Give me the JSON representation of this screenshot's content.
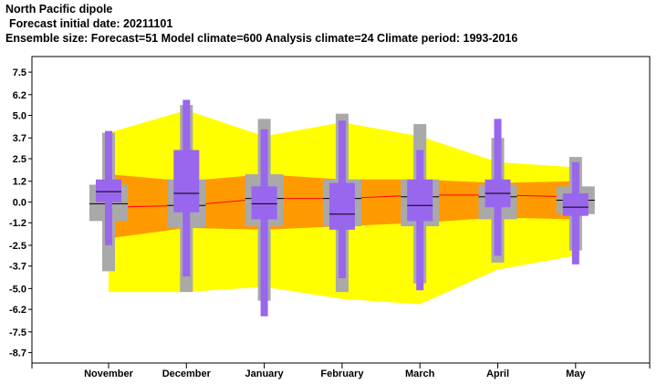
{
  "title": "North Pacific dipole",
  "subtitle": "Forecast initial date: 20211101",
  "info": "Ensemble size: Forecast=51 Model climate=600 Analysis climate=24   Climate period: 1993-2016",
  "colors": {
    "climate_outer": "#ffff00",
    "climate_inner": "#ff9900",
    "climate_median": "#ff0000",
    "analysis_box": "#a9a9a9",
    "forecast_box": "#9966ee",
    "median_line": "#000000"
  },
  "chart_data": {
    "type": "box",
    "ylim": [
      -9.3,
      8.4
    ],
    "yticks": [
      7.5,
      6.2,
      5.0,
      3.7,
      2.5,
      1.2,
      0.0,
      -1.2,
      -2.5,
      -3.7,
      -5.0,
      -6.2,
      -7.5,
      -8.7
    ],
    "ytick_labels": [
      "7.5",
      "6.2",
      "5.0",
      "3.7",
      "2.5",
      "1.2",
      "0.0",
      "-1.2",
      "-2.5",
      "-3.7",
      "-5.0",
      "-6.2",
      "-7.5",
      "-8.7"
    ],
    "categories": [
      "November",
      "December",
      "January",
      "February",
      "March",
      "April",
      "May"
    ],
    "model_climate": {
      "upper": [
        4.0,
        5.3,
        3.8,
        4.6,
        3.8,
        2.3,
        2.0
      ],
      "upper_quartile": [
        1.6,
        1.2,
        1.6,
        1.3,
        1.3,
        1.1,
        1.2
      ],
      "median": [
        -0.3,
        -0.2,
        0.2,
        0.2,
        0.4,
        0.4,
        0.3
      ],
      "lower_quartile": [
        -2.1,
        -1.5,
        -1.6,
        -1.4,
        -1.2,
        -0.9,
        -1.0
      ],
      "lower": [
        -5.2,
        -5.2,
        -4.9,
        -5.6,
        -5.9,
        -3.9,
        -3.1
      ]
    },
    "analysis_climate": [
      {
        "min": -4.0,
        "q1": -1.1,
        "median": -0.1,
        "q3": 1.0,
        "max": 4.0
      },
      {
        "min": -5.2,
        "q1": -1.5,
        "median": -0.2,
        "q3": 1.3,
        "max": 5.6
      },
      {
        "min": -5.7,
        "q1": -1.4,
        "median": 0.2,
        "q3": 1.6,
        "max": 4.8
      },
      {
        "min": -5.2,
        "q1": -1.4,
        "median": 0.2,
        "q3": 1.3,
        "max": 5.1
      },
      {
        "min": -4.7,
        "q1": -1.4,
        "median": 0.3,
        "q3": 1.3,
        "max": 4.5
      },
      {
        "min": -3.5,
        "q1": -1.0,
        "median": 0.3,
        "q3": 1.0,
        "max": 3.7
      },
      {
        "min": -2.8,
        "q1": -0.7,
        "median": 0.1,
        "q3": 0.9,
        "max": 2.6
      }
    ],
    "forecast": [
      {
        "min": -2.5,
        "p25": 0.0,
        "p50": 0.6,
        "p75": 1.3,
        "max": 4.1
      },
      {
        "min": -4.3,
        "p25": -0.6,
        "p50": 0.5,
        "p75": 3.0,
        "max": 5.9
      },
      {
        "min": -6.6,
        "p25": -1.0,
        "p50": -0.1,
        "p75": 0.9,
        "max": 4.2
      },
      {
        "min": -4.4,
        "p25": -1.6,
        "p50": -0.7,
        "p75": 1.1,
        "max": 4.7
      },
      {
        "min": -5.1,
        "p25": -1.1,
        "p50": -0.2,
        "p75": 1.3,
        "max": 3.0
      },
      {
        "min": -3.1,
        "p25": -0.3,
        "p50": 0.5,
        "p75": 1.3,
        "max": 4.8
      },
      {
        "min": -3.6,
        "p25": -0.8,
        "p50": -0.3,
        "p75": 0.5,
        "max": 2.3
      }
    ]
  }
}
